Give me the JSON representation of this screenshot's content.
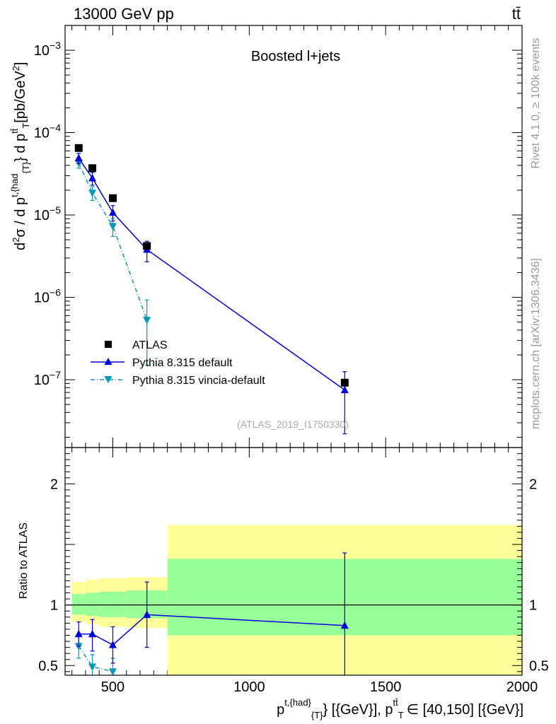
{
  "header": {
    "left_label": "13000 GeV pp",
    "right_label": "tt̄"
  },
  "side_labels": {
    "rivet": "Rivet 4.1.0, ≥ 100k events",
    "mcplots": "mcplots.cern.ch [arXiv:1306.3436]"
  },
  "chart_data": [
    {
      "type": "scatter",
      "scale": "log",
      "title": "Boosted l+jets",
      "analysis_id": "(ATLAS_2019_I1750330)",
      "ylabel": "d²σ / d p^{t,{had}}_{T} d p_T^{tt̄} [pb/GeV²]",
      "ylabel_parts": {
        "a": "d",
        "b": "σ  /  d p",
        "c": "} d p",
        "d": "[pb/GeV",
        "e": "]"
      },
      "xlim": [
        325,
        2000
      ],
      "ylim": [
        1.5e-08,
        0.002
      ],
      "y_ticks": [
        {
          "value": 1e-07,
          "mant": "10",
          "exp": "−7"
        },
        {
          "value": 1e-06,
          "mant": "10",
          "exp": "−6"
        },
        {
          "value": 1e-05,
          "mant": "10",
          "exp": "−5"
        },
        {
          "value": 0.0001,
          "mant": "10",
          "exp": "−4"
        },
        {
          "value": 0.001,
          "mant": "10",
          "exp": "−3"
        }
      ],
      "series": [
        {
          "name": "ATLAS",
          "color": "#000000",
          "marker": "square",
          "x": [
            375,
            425,
            500,
            625,
            1350
          ],
          "y": [
            6.5e-05,
            3.7e-05,
            1.6e-05,
            4.2e-06,
            9.2e-08
          ]
        },
        {
          "name": "Pythia 8.315 default",
          "color": "#0000dd",
          "marker": "triangle-up",
          "line": "solid",
          "x": [
            375,
            425,
            500,
            625,
            1350
          ],
          "y": [
            4.9e-05,
            2.8e-05,
            1.07e-05,
            3.8e-06,
            7.5e-08
          ],
          "err_lo": [
            4.2e-05,
            2.3e-05,
            8.5e-06,
            2.7e-06,
            2.2e-08
          ],
          "err_hi": [
            5.6e-05,
            3.3e-05,
            1.3e-05,
            4.8e-06,
            1.25e-07
          ]
        },
        {
          "name": "Pythia 8.315 vincia-default",
          "color": "#0099b8",
          "marker": "triangle-down",
          "line": "dashdot",
          "x": [
            375,
            425,
            500,
            625
          ],
          "y": [
            4.3e-05,
            1.85e-05,
            7.3e-06,
            5.3e-07
          ],
          "err_lo": [
            3.7e-05,
            1.5e-05,
            5.5e-06,
            1.5e-07
          ],
          "err_hi": [
            4.9e-05,
            2.2e-05,
            9.1e-06,
            9.3e-07
          ]
        }
      ]
    },
    {
      "type": "scatter",
      "title": "",
      "ylabel": "Ratio to ATLAS",
      "xlabel_parts": {
        "a": "p",
        "b": "t,{had}",
        "c": "{T}",
        "d": "} [{GeV}], p",
        "e": "tt̄",
        "f": "T",
        "g": "∈ [40,150] [{GeV}]"
      },
      "xlim": [
        325,
        2000
      ],
      "ylim": [
        0.42,
        2.3
      ],
      "y_ticks": [
        {
          "value": 0.5,
          "label": "0.5"
        },
        {
          "value": 1,
          "label": "1"
        },
        {
          "value": 2,
          "label": "2"
        }
      ],
      "x_ticks": [
        {
          "value": 500,
          "label": "500"
        },
        {
          "value": 1000,
          "label": "1000"
        },
        {
          "value": 1500,
          "label": "1500"
        },
        {
          "value": 2000,
          "label": "2000"
        }
      ],
      "bands": [
        {
          "x0": 350,
          "x1": 400,
          "green_lo": 0.92,
          "green_hi": 1.09,
          "yellow_lo": 0.86,
          "yellow_hi": 1.19
        },
        {
          "x0": 400,
          "x1": 450,
          "green_lo": 0.91,
          "green_hi": 1.1,
          "yellow_lo": 0.84,
          "yellow_hi": 1.21
        },
        {
          "x0": 450,
          "x1": 550,
          "green_lo": 0.9,
          "green_hi": 1.11,
          "yellow_lo": 0.82,
          "yellow_hi": 1.22
        },
        {
          "x0": 550,
          "x1": 700,
          "green_lo": 0.89,
          "green_hi": 1.12,
          "yellow_lo": 0.81,
          "yellow_hi": 1.23
        },
        {
          "x0": 700,
          "x1": 2000,
          "green_lo": 0.75,
          "green_hi": 1.38,
          "yellow_lo": 0.42,
          "yellow_hi": 1.66
        }
      ],
      "series": [
        {
          "name": "Pythia 8.315 default",
          "color": "#0000dd",
          "marker": "triangle-up",
          "line": "solid",
          "x": [
            375,
            425,
            500,
            625,
            1350
          ],
          "y": [
            0.76,
            0.76,
            0.67,
            0.92,
            0.83
          ],
          "err_lo": [
            0.66,
            0.62,
            0.52,
            0.65,
            0.24
          ],
          "err_hi": [
            0.86,
            0.88,
            0.82,
            1.19,
            1.43
          ]
        },
        {
          "name": "Pythia 8.315 vincia-default",
          "color": "#0099b8",
          "marker": "triangle-down",
          "line": "dashdot",
          "x": [
            375,
            425,
            500
          ],
          "y": [
            0.66,
            0.49,
            0.45
          ],
          "err_lo": [
            0.56,
            0.4,
            0.34
          ],
          "err_hi": [
            0.76,
            0.59,
            0.56
          ]
        }
      ]
    }
  ]
}
